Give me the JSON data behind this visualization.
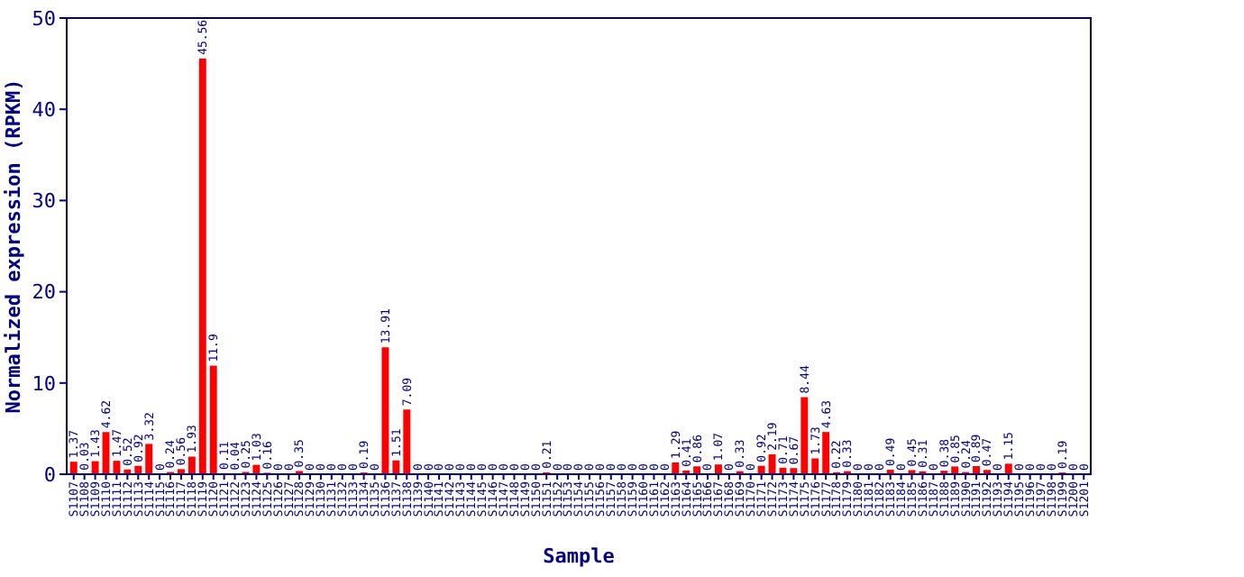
{
  "chart_data": {
    "type": "bar",
    "xlabel": "Sample",
    "ylabel": "Normalized expression (RPKM)",
    "categories": [
      "S1107",
      "S1108",
      "S1109",
      "S1110",
      "S1111",
      "S1112",
      "S1113",
      "S1114",
      "S1115",
      "S1116",
      "S1117",
      "S1118",
      "S1119",
      "S1120",
      "S1121",
      "S1122",
      "S1123",
      "S1124",
      "S1125",
      "S1126",
      "S1127",
      "S1128",
      "S1129",
      "S1130",
      "S1131",
      "S1132",
      "S1133",
      "S1134",
      "S1135",
      "S1136",
      "S1137",
      "S1138",
      "S1139",
      "S1140",
      "S1141",
      "S1142",
      "S1143",
      "S1144",
      "S1145",
      "S1146",
      "S1147",
      "S1148",
      "S1149",
      "S1150",
      "S1151",
      "S1152",
      "S1153",
      "S1154",
      "S1155",
      "S1156",
      "S1157",
      "S1158",
      "S1159",
      "S1160",
      "S1161",
      "S1162",
      "S1163",
      "S1164",
      "S1165",
      "S1166",
      "S1167",
      "S1168",
      "S1169",
      "S1170",
      "S1171",
      "S1172",
      "S1173",
      "S1174",
      "S1175",
      "S1176",
      "S1177",
      "S1178",
      "S1179",
      "S1180",
      "S1181",
      "S1182",
      "S1183",
      "S1184",
      "S1185",
      "S1186",
      "S1187",
      "S1188",
      "S1189",
      "S1190",
      "S1191",
      "S1192",
      "S1193",
      "S1194",
      "S1195",
      "S1196",
      "S1197",
      "S1198",
      "S1199",
      "S1200",
      "S1201"
    ],
    "values": [
      1.37,
      0.03,
      1.43,
      4.62,
      1.47,
      0.52,
      0.92,
      3.32,
      0,
      0.24,
      0.56,
      1.93,
      45.56,
      11.9,
      0.11,
      0.04,
      0.25,
      1.03,
      0.16,
      0,
      0,
      0.35,
      0,
      0,
      0,
      0,
      0,
      0.19,
      0,
      13.91,
      1.51,
      7.09,
      0,
      0,
      0,
      0,
      0,
      0,
      0,
      0,
      0,
      0,
      0,
      0,
      0.21,
      0,
      0,
      0,
      0,
      0,
      0,
      0,
      0,
      0,
      0,
      0,
      1.29,
      0.41,
      0.86,
      0,
      1.07,
      0,
      0.33,
      0,
      0.92,
      2.19,
      0.71,
      0.67,
      8.44,
      1.73,
      4.63,
      0.22,
      0.33,
      0,
      0,
      0,
      0.49,
      0,
      0.45,
      0.31,
      0,
      0.38,
      0.85,
      0.24,
      0.89,
      0.47,
      0,
      1.15,
      0,
      0,
      0,
      0,
      0.19,
      0,
      0
    ],
    "color": "#ff0000",
    "ylim": [
      0,
      50
    ],
    "yticks": [
      0,
      10,
      20,
      30,
      40,
      50
    ],
    "data_labels": true,
    "grid": false
  }
}
